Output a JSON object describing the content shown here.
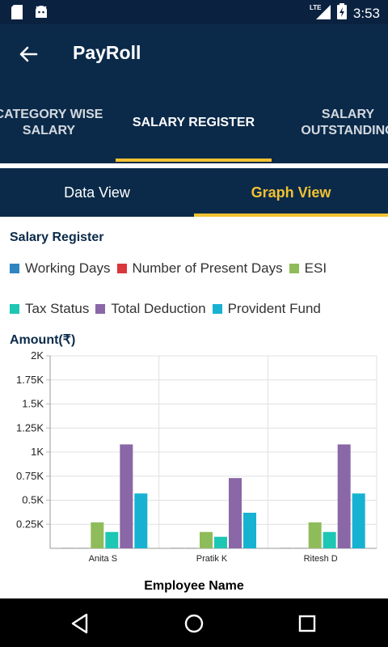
{
  "status_bar": {
    "time": "3:53",
    "network": "LTE"
  },
  "app_bar": {
    "title": "PayRoll"
  },
  "tabs": [
    {
      "label": "CATEGORY WISE\nSALARY"
    },
    {
      "label": "SALARY REGISTER"
    },
    {
      "label": "SALARY\nOUTSTANDING"
    }
  ],
  "subtabs": [
    {
      "label": "Data View"
    },
    {
      "label": "Graph View"
    }
  ],
  "chart_title": "Salary Register",
  "chart_data": {
    "type": "bar",
    "title": "Salary Register",
    "ylabel": "Amount(₹)",
    "xlabel": "Employee Name",
    "categories": [
      "Anita S",
      "Pratik K",
      "Ritesh D"
    ],
    "ylim": [
      0,
      2000
    ],
    "yticks": [
      "0.25K",
      "0.5K",
      "0.75K",
      "1K",
      "1.25K",
      "1.5K",
      "1.75K",
      "2K"
    ],
    "ytick_values": [
      250,
      500,
      750,
      1000,
      1250,
      1500,
      1750,
      2000
    ],
    "legend_placement": "top",
    "series": [
      {
        "name": "Working Days",
        "color": "#2e86c1",
        "values": [
          0,
          0,
          0
        ]
      },
      {
        "name": "Number of Present Days",
        "color": "#d9363e",
        "values": [
          0,
          0,
          0
        ]
      },
      {
        "name": "ESI",
        "color": "#8fbc5a",
        "values": [
          270,
          170,
          270
        ]
      },
      {
        "name": "Tax Status",
        "color": "#1ec6b4",
        "values": [
          170,
          120,
          170
        ]
      },
      {
        "name": "Total Deduction",
        "color": "#8a67a6",
        "values": [
          1080,
          730,
          1080
        ]
      },
      {
        "name": "Provident Fund",
        "color": "#17b2d1",
        "values": [
          570,
          370,
          570
        ]
      }
    ]
  }
}
